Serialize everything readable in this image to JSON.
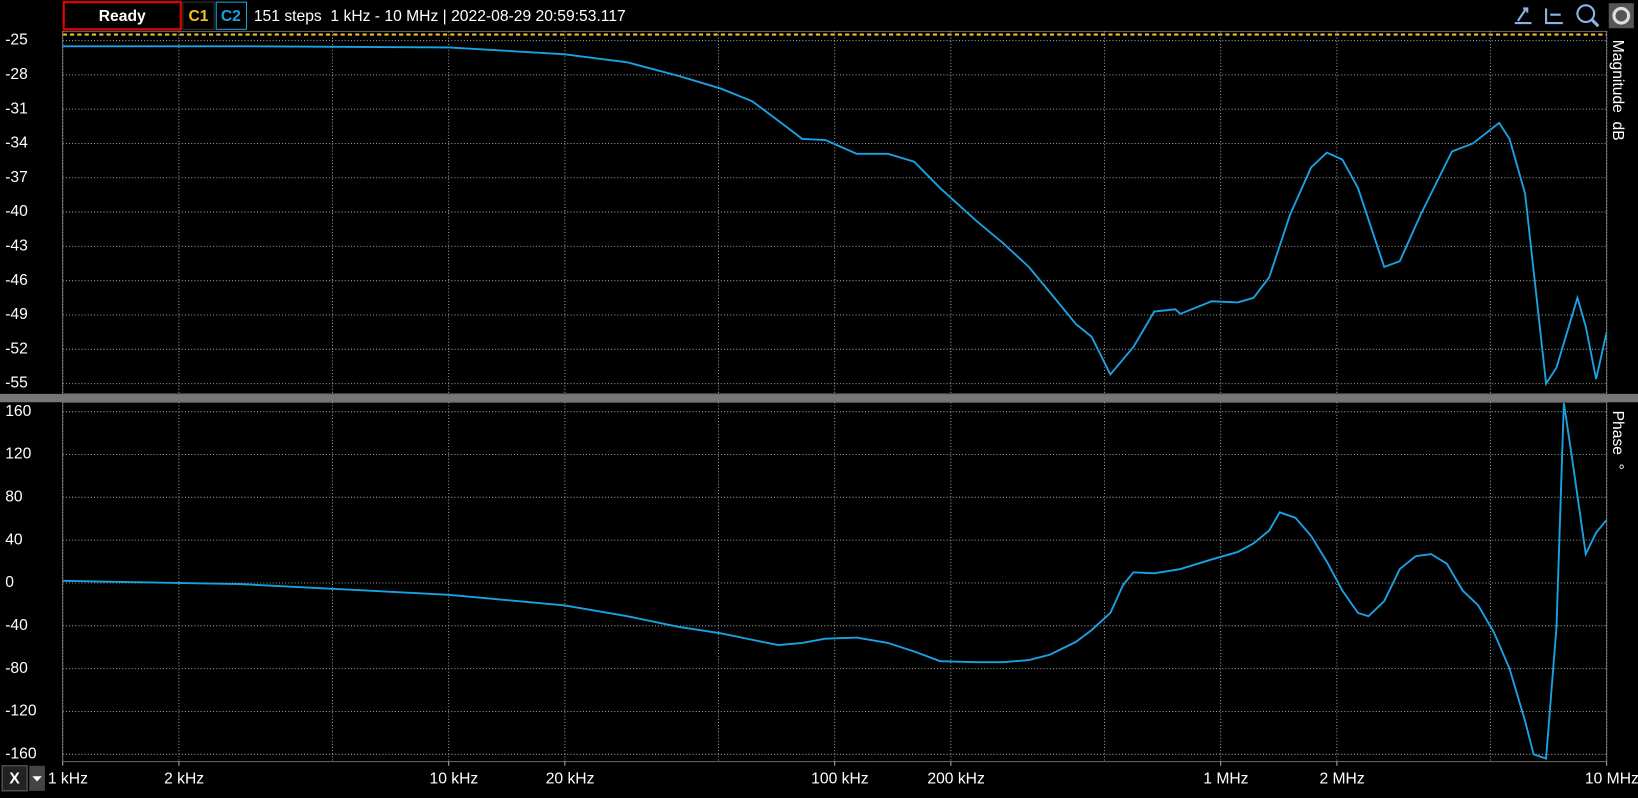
{
  "toolbar": {
    "status": "Ready",
    "channels": [
      "C1",
      "C2"
    ],
    "info": "151 steps  1 kHz - 10 MHz | 2022-08-29 20:59:53.117",
    "x_button": "X"
  },
  "chart_data": [
    {
      "type": "line",
      "y_label": "Magnitude  dB",
      "log_x": true,
      "grid": true,
      "x": [
        1000,
        2884,
        10000,
        20000,
        29000,
        39500,
        50700,
        61100,
        71400,
        82400,
        94600,
        114000,
        137400,
        160700,
        187600,
        233300,
        272700,
        318600,
        360700,
        421700,
        463000,
        517900,
        594200,
        673000,
        762700,
        786400,
        948400,
        1108000,
        1217000,
        1336000,
        1514000,
        1715000,
        1884000,
        2066000,
        2269000,
        2653000,
        2911000,
        3299000,
        3974000,
        4503000,
        5265000,
        5602000,
        6148000,
        6967000,
        7414000,
        8400000,
        8827000,
        9392000,
        10000000
      ],
      "series": [
        {
          "color": "#1ba1e2",
          "values": [
            -25.5,
            -25.5,
            -25.6,
            -26.2,
            -26.9,
            -28.1,
            -29.2,
            -30.3,
            -32.0,
            -33.6,
            -33.7,
            -34.9,
            -34.9,
            -35.6,
            -37.9,
            -40.8,
            -42.7,
            -44.8,
            -47.0,
            -49.8,
            -50.9,
            -54.2,
            -51.8,
            -48.7,
            -48.5,
            -48.9,
            -47.8,
            -47.9,
            -47.5,
            -45.7,
            -40.2,
            -36.1,
            -34.8,
            -35.4,
            -37.9,
            -44.8,
            -44.3,
            -40.2,
            -34.7,
            -34.0,
            -32.2,
            -33.6,
            -38.4,
            -55.0,
            -53.6,
            -47.5,
            -50.0,
            -54.6,
            -50.5
          ]
        }
      ],
      "xlim": [
        1000,
        10000000
      ],
      "xticks": [
        1000,
        2000,
        5000,
        10000,
        20000,
        50000,
        100000,
        200000,
        500000,
        1000000,
        2000000,
        5000000,
        10000000
      ],
      "ylim": [
        -55.9,
        -24.2
      ],
      "yticks": [
        -25,
        -28,
        -31,
        -34,
        -37,
        -40,
        -43,
        -46,
        -49,
        -52,
        -55
      ]
    },
    {
      "type": "line",
      "y_label": "Phase  °",
      "log_x": true,
      "grid": true,
      "x": [
        1000,
        2884,
        10000,
        20000,
        29000,
        39500,
        50700,
        61100,
        71400,
        82400,
        94600,
        114000,
        137400,
        160700,
        187600,
        233300,
        272700,
        318600,
        360700,
        421700,
        463000,
        517900,
        558400,
        594200,
        673000,
        786400,
        948400,
        1108000,
        1217000,
        1336000,
        1422000,
        1561000,
        1715000,
        1884000,
        2066000,
        2269000,
        2415000,
        2653000,
        2911000,
        3198000,
        3508000,
        3855000,
        4234000,
        4649000,
        5103000,
        5602000,
        6148000,
        6467000,
        6967000,
        7414000,
        7747000,
        8148000,
        8827000,
        9392000,
        10000000
      ],
      "series": [
        {
          "color": "#1ba1e2",
          "values": [
            2,
            -1,
            -11,
            -21,
            -31,
            -41,
            -47,
            -53,
            -58,
            -56,
            -52,
            -51,
            -56,
            -64,
            -73,
            -74,
            -74,
            -72,
            -67,
            -55,
            -44,
            -28,
            -2,
            10,
            9,
            13,
            22,
            29,
            37,
            49,
            66,
            61,
            44,
            20,
            -7,
            -28,
            -31,
            -17,
            13,
            25,
            27,
            18,
            -7,
            -21,
            -46,
            -80,
            -129,
            -160,
            -164,
            -41,
            168,
            115,
            27,
            47,
            59
          ]
        }
      ],
      "xlim": [
        1000,
        10000000
      ],
      "xticks": [
        {
          "value": 1000,
          "label": "1 kHz"
        },
        {
          "value": 2000,
          "label": "2 kHz"
        },
        {
          "value": 10000,
          "label": "10 kHz"
        },
        {
          "value": 20000,
          "label": "20 kHz"
        },
        {
          "value": 100000,
          "label": "100 kHz"
        },
        {
          "value": 200000,
          "label": "200 kHz"
        },
        {
          "value": 1000000,
          "label": "1 MHz"
        },
        {
          "value": 2000000,
          "label": "2 MHz"
        },
        {
          "value": 10000000,
          "label": "10 MHz"
        }
      ],
      "xgrid": [
        5000,
        50000,
        500000,
        5000000
      ],
      "ylim": [
        -166.8,
        168.8
      ],
      "yticks": [
        160,
        120,
        80,
        40,
        0,
        -40,
        -80,
        -120,
        -160
      ]
    }
  ]
}
